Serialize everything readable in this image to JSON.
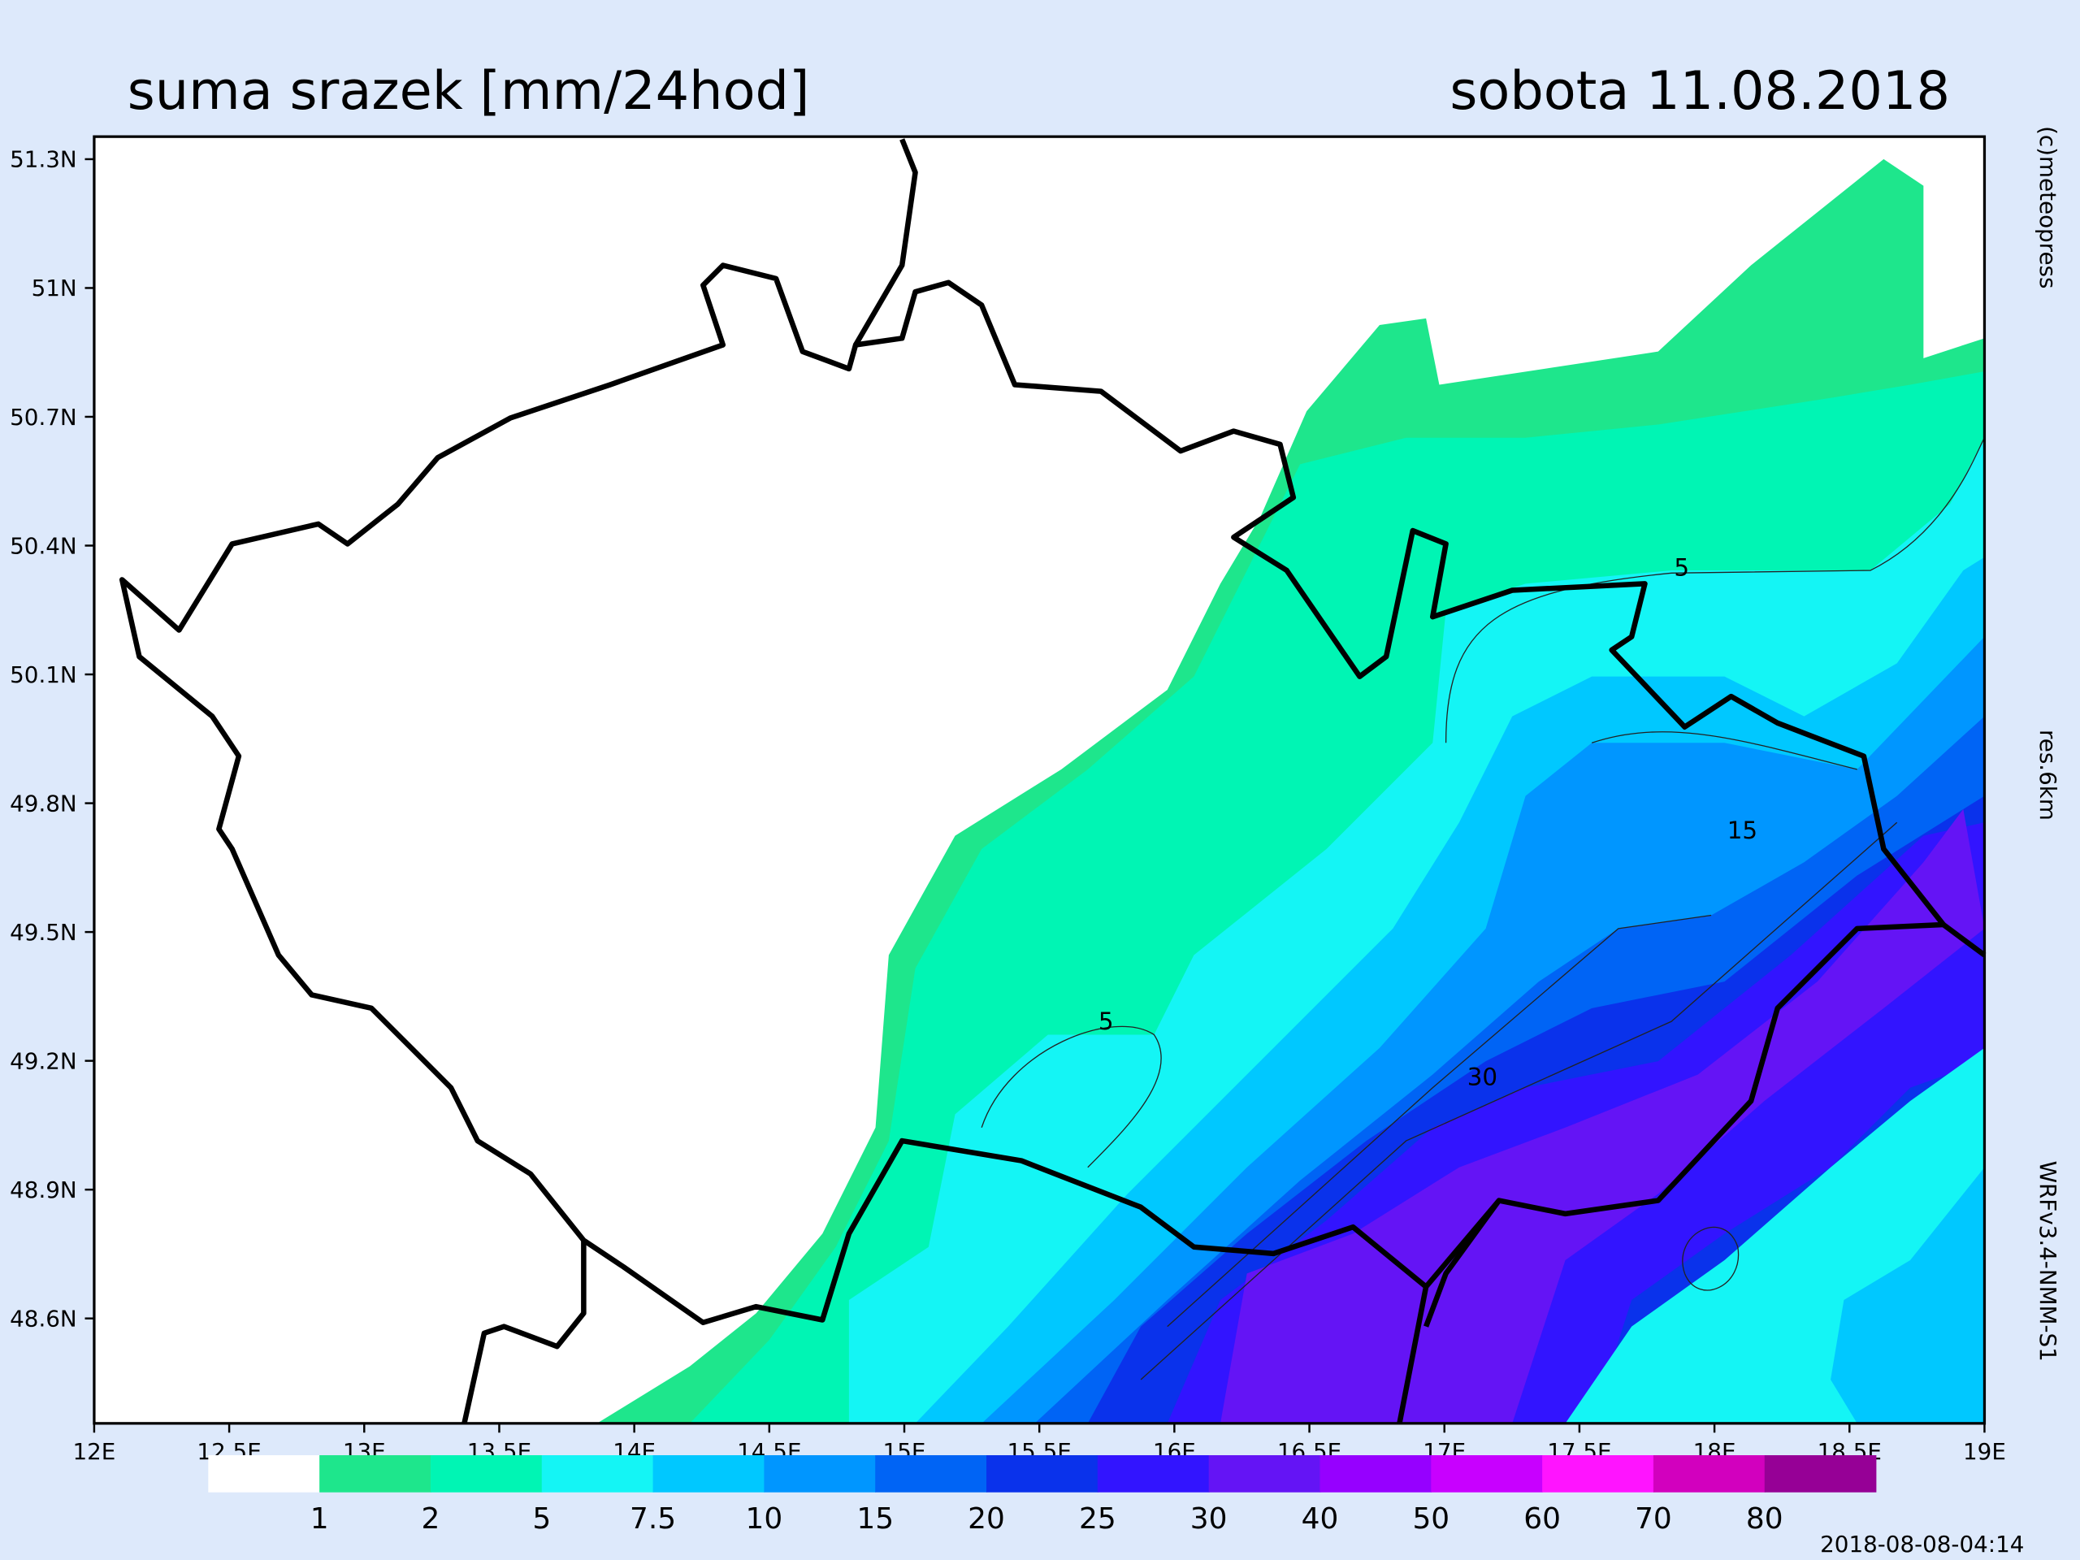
{
  "header": {
    "title": "suma srazek [mm/24hod]",
    "date": "sobota 11.08.2018"
  },
  "axes": {
    "latitudes": [
      "51.3N",
      "51N",
      "50.7N",
      "50.4N",
      "50.1N",
      "49.8N",
      "49.5N",
      "49.2N",
      "48.9N",
      "48.6N"
    ],
    "longitudes": [
      "12E",
      "12.5E",
      "13E",
      "13.5E",
      "14E",
      "14.5E",
      "15E",
      "15.5E",
      "16E",
      "16.5E",
      "17E",
      "17.5E",
      "18E",
      "18.5E",
      "19E"
    ]
  },
  "legend": {
    "colors": [
      "#ffffff",
      "#1ee68c",
      "#00f5b4",
      "#14f5f5",
      "#00c8ff",
      "#0096ff",
      "#0064f5",
      "#0a32eb",
      "#3214ff",
      "#6414f5",
      "#9600ff",
      "#c800ff",
      "#ff14ff",
      "#d200be",
      "#960096"
    ],
    "boundaries": [
      1,
      2,
      5,
      7.5,
      10,
      15,
      20,
      25,
      30,
      40,
      50,
      60,
      70,
      80
    ]
  },
  "contour_labels": [
    "5",
    "5",
    "15",
    "30"
  ],
  "credits": {
    "copyright": "(c)meteopress",
    "resolution": "res.6km",
    "model": "WRFv3.4-NMM-S1",
    "timestamp": "2018-08-08-04:14"
  }
}
